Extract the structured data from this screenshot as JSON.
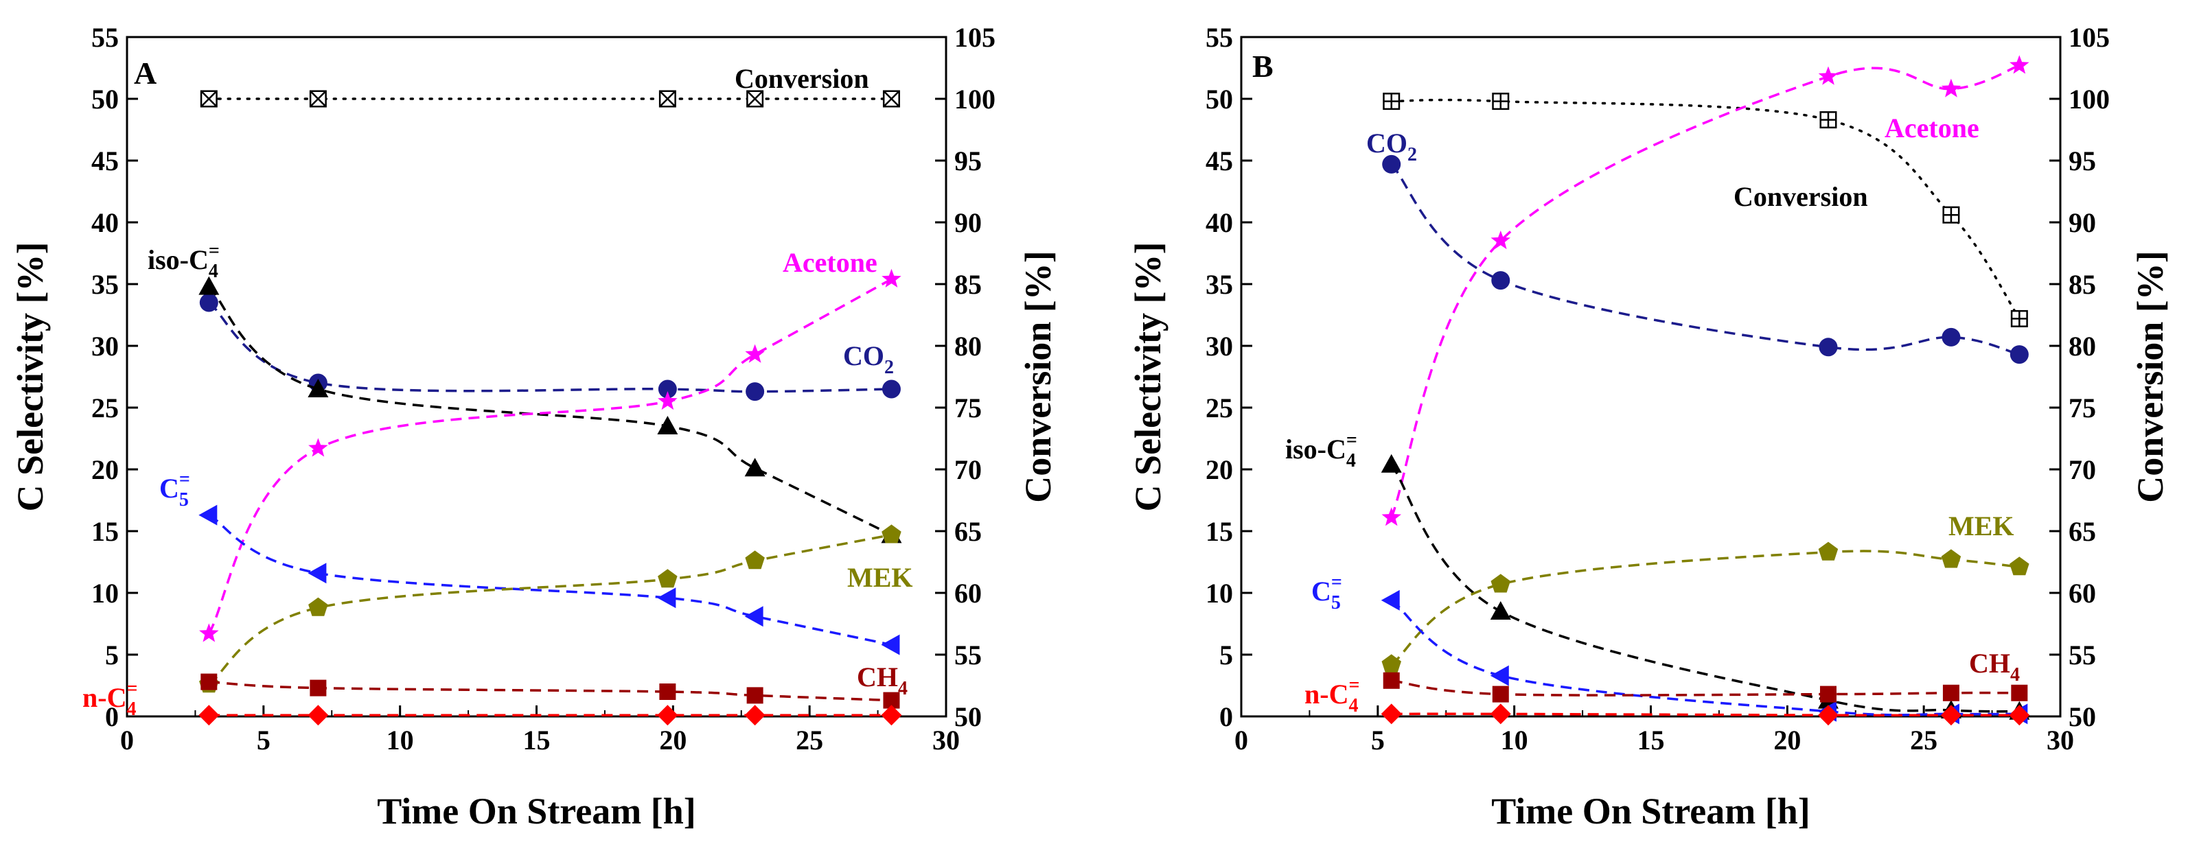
{
  "chart_data": [
    {
      "type": "scatter",
      "panel": "A",
      "xlabel": "Time On Stream [h]",
      "ylabel": "C Selectivity [%]",
      "y2label": "Conversion [%]",
      "xlim": [
        0,
        30
      ],
      "ylim": [
        0,
        55
      ],
      "y2lim": [
        50,
        105
      ],
      "xticks": [
        0,
        5,
        10,
        15,
        20,
        25,
        30
      ],
      "yticks": [
        0,
        5,
        10,
        15,
        20,
        25,
        30,
        35,
        40,
        45,
        50,
        55
      ],
      "y2ticks": [
        50,
        55,
        60,
        65,
        70,
        75,
        80,
        85,
        90,
        95,
        100,
        105
      ],
      "series": [
        {
          "name": "Conversion",
          "axis": "y2",
          "color": "#000000",
          "marker": "boxx",
          "line": "dotted",
          "x": [
            3,
            7,
            19.8,
            23,
            28
          ],
          "values": [
            100,
            100,
            100,
            100,
            100
          ]
        },
        {
          "name": "CO2",
          "axis": "y",
          "color": "#1c1c8c",
          "marker": "circle",
          "line": "dashed",
          "x": [
            3,
            7,
            19.8,
            23,
            28
          ],
          "values": [
            33.5,
            27,
            26.5,
            26.3,
            26.5
          ]
        },
        {
          "name": "iso-C4=",
          "axis": "y",
          "color": "#000000",
          "marker": "triangle",
          "line": "dashed",
          "x": [
            3,
            7,
            19.8,
            23,
            28
          ],
          "values": [
            34.8,
            26.5,
            23.5,
            20.1,
            14.7
          ]
        },
        {
          "name": "Acetone",
          "axis": "y",
          "color": "#ff00ff",
          "marker": "star",
          "line": "dashed",
          "x": [
            3,
            7,
            19.8,
            23,
            28
          ],
          "values": [
            6.7,
            21.7,
            25.5,
            29.3,
            35.4
          ]
        },
        {
          "name": "C5=",
          "axis": "y",
          "color": "#1a1aff",
          "marker": "tri-left",
          "line": "dashed",
          "x": [
            3,
            7,
            19.8,
            23,
            28
          ],
          "values": [
            16.3,
            11.6,
            9.6,
            8.1,
            5.8
          ]
        },
        {
          "name": "MEK",
          "axis": "y",
          "color": "#808000",
          "marker": "pentagon",
          "line": "dashed",
          "x": [
            3,
            7,
            19.8,
            23,
            28
          ],
          "values": [
            2.6,
            8.8,
            11.1,
            12.6,
            14.7
          ]
        },
        {
          "name": "CH4",
          "axis": "y",
          "color": "#990000",
          "marker": "square",
          "line": "dashed",
          "x": [
            3,
            7,
            19.8,
            23,
            28
          ],
          "values": [
            2.8,
            2.3,
            2.0,
            1.7,
            1.3
          ]
        },
        {
          "name": "n-C4=",
          "axis": "y",
          "color": "#ff0000",
          "marker": "diamond",
          "line": "dashed",
          "x": [
            3,
            7,
            19.8,
            23,
            28
          ],
          "values": [
            0.1,
            0.1,
            0.1,
            0.1,
            0.1
          ]
        }
      ],
      "annotations": [
        {
          "label": "A",
          "kind": "panel-letter"
        },
        {
          "base": "Conversion",
          "sub": "",
          "sup": "",
          "color": "#000000"
        },
        {
          "base": "iso-C",
          "sub": "4",
          "sup": "=",
          "color": "#000000"
        },
        {
          "base": "Acetone",
          "sub": "",
          "sup": "",
          "color": "#ff00ff"
        },
        {
          "base": "CO",
          "sub": "2",
          "sup": "",
          "color": "#1c1c8c"
        },
        {
          "base": "C",
          "sub": "5",
          "sup": "=",
          "color": "#1a1aff"
        },
        {
          "base": "MEK",
          "sub": "",
          "sup": "",
          "color": "#808000"
        },
        {
          "base": "CH",
          "sub": "4",
          "sup": "",
          "color": "#990000"
        },
        {
          "base": "n-C",
          "sub": "4",
          "sup": "=",
          "color": "#ff0000"
        }
      ]
    },
    {
      "type": "scatter",
      "panel": "B",
      "xlabel": "Time On Stream [h]",
      "ylabel": "C Selectivity [%]",
      "y2label": "Conversion [%]",
      "xlim": [
        0,
        30
      ],
      "ylim": [
        0,
        55
      ],
      "y2lim": [
        50,
        105
      ],
      "xticks": [
        0,
        5,
        10,
        15,
        20,
        25,
        30
      ],
      "yticks": [
        0,
        5,
        10,
        15,
        20,
        25,
        30,
        35,
        40,
        45,
        50,
        55
      ],
      "y2ticks": [
        50,
        55,
        60,
        65,
        70,
        75,
        80,
        85,
        90,
        95,
        100,
        105
      ],
      "series": [
        {
          "name": "Conversion",
          "axis": "y2",
          "color": "#000000",
          "marker": "boxplus",
          "line": "dotted",
          "x": [
            5.5,
            9.5,
            21.5,
            26,
            28.5
          ],
          "values": [
            99.8,
            99.8,
            98.3,
            90.6,
            82.2
          ]
        },
        {
          "name": "CO2",
          "axis": "y",
          "color": "#1c1c8c",
          "marker": "circle",
          "line": "dashed",
          "x": [
            5.5,
            9.5,
            21.5,
            26,
            28.5
          ],
          "values": [
            44.7,
            35.3,
            29.9,
            30.7,
            29.3
          ]
        },
        {
          "name": "Acetone",
          "axis": "y",
          "color": "#ff00ff",
          "marker": "star",
          "line": "dashed",
          "x": [
            5.5,
            9.5,
            21.5,
            26,
            28.5
          ],
          "values": [
            16.1,
            38.5,
            51.8,
            50.8,
            52.7
          ]
        },
        {
          "name": "iso-C4=",
          "axis": "y",
          "color": "#000000",
          "marker": "triangle",
          "line": "dashed",
          "x": [
            5.5,
            9.5,
            21.5,
            26,
            28.5
          ],
          "values": [
            20.4,
            8.5,
            1.3,
            0.5,
            0.4
          ]
        },
        {
          "name": "MEK",
          "axis": "y",
          "color": "#808000",
          "marker": "pentagon",
          "line": "dashed",
          "x": [
            5.5,
            9.5,
            21.5,
            26,
            28.5
          ],
          "values": [
            4.2,
            10.7,
            13.3,
            12.7,
            12.1
          ]
        },
        {
          "name": "C5=",
          "axis": "y",
          "color": "#1a1aff",
          "marker": "tri-left",
          "line": "dashed",
          "x": [
            5.5,
            9.5,
            21.5,
            26,
            28.5
          ],
          "values": [
            9.4,
            3.3,
            0.4,
            0.2,
            0.2
          ]
        },
        {
          "name": "CH4",
          "axis": "y",
          "color": "#990000",
          "marker": "square",
          "line": "dashed",
          "x": [
            5.5,
            9.5,
            21.5,
            26,
            28.5
          ],
          "values": [
            2.9,
            1.8,
            1.8,
            1.9,
            1.9
          ]
        },
        {
          "name": "n-C4=",
          "axis": "y",
          "color": "#ff0000",
          "marker": "diamond",
          "line": "dashed",
          "x": [
            5.5,
            9.5,
            21.5,
            26,
            28.5
          ],
          "values": [
            0.2,
            0.2,
            0.1,
            0.1,
            0.1
          ]
        }
      ],
      "annotations": [
        {
          "label": "B",
          "kind": "panel-letter"
        },
        {
          "base": "CO",
          "sub": "2",
          "sup": "",
          "color": "#1c1c8c"
        },
        {
          "base": "Acetone",
          "sub": "",
          "sup": "",
          "color": "#ff00ff"
        },
        {
          "base": "Conversion",
          "sub": "",
          "sup": "",
          "color": "#000000"
        },
        {
          "base": "iso-C",
          "sub": "4",
          "sup": "=",
          "color": "#000000"
        },
        {
          "base": "MEK",
          "sub": "",
          "sup": "",
          "color": "#808000"
        },
        {
          "base": "C",
          "sub": "5",
          "sup": "=",
          "color": "#1a1aff"
        },
        {
          "base": "n-C",
          "sub": "4",
          "sup": "=",
          "color": "#ff0000"
        },
        {
          "base": "CH",
          "sub": "4",
          "sup": "",
          "color": "#990000"
        }
      ]
    }
  ]
}
